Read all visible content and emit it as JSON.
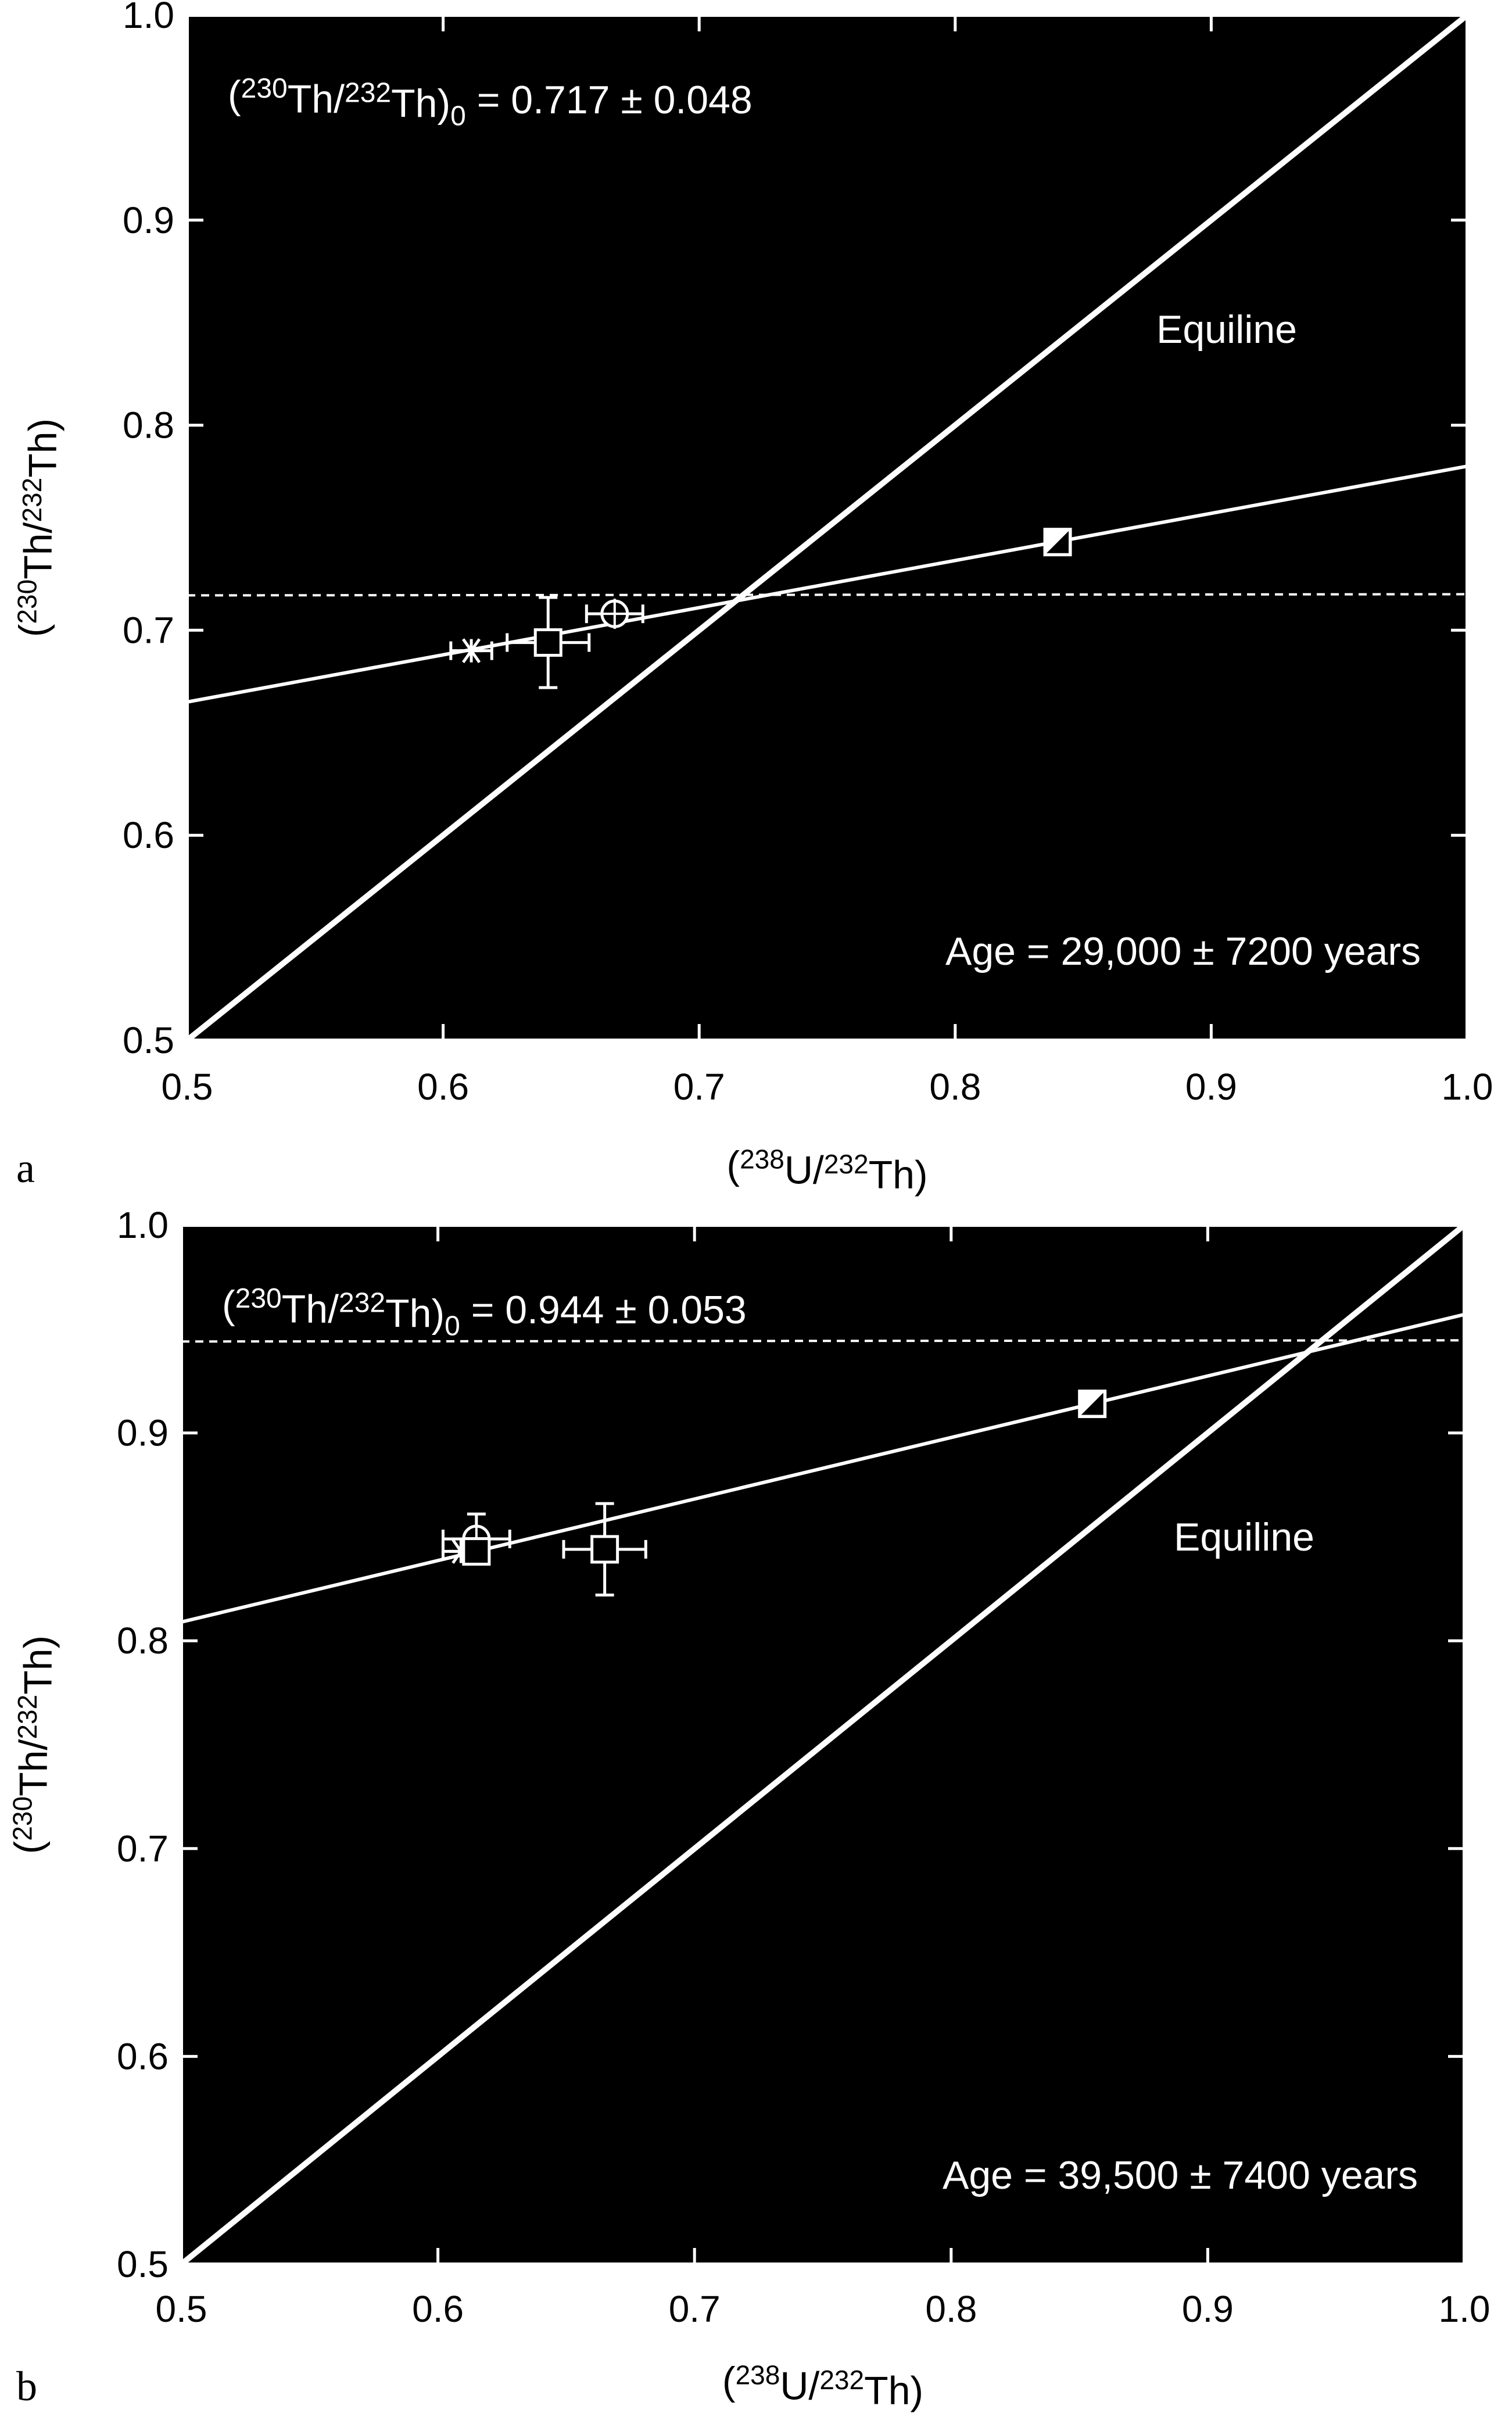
{
  "chart_data": [
    {
      "type": "scatter",
      "panel_label": "a",
      "xlabel": "(238U/232Th)",
      "ylabel": "(230Th/232Th)",
      "xlim": [
        0.5,
        1.0
      ],
      "ylim": [
        0.5,
        1.0
      ],
      "xticks": [
        "0.5",
        "0.6",
        "0.7",
        "0.8",
        "0.9",
        "1.0"
      ],
      "yticks": [
        "0.5",
        "0.6",
        "0.7",
        "0.8",
        "0.9",
        "1.0"
      ],
      "background": "#000000",
      "foreground": "#ffffff",
      "initial_ratio_text": "(230Th/232Th)0 = 0.717 ± 0.048",
      "age_text": "Age = 29,000 ± 7200 years",
      "equiline_label": "Equiline",
      "equiline": [
        [
          0.5,
          0.5
        ],
        [
          1.0,
          1.0
        ]
      ],
      "isochron": [
        [
          0.5,
          0.665
        ],
        [
          1.0,
          0.78
        ]
      ],
      "initial_ratio_line": {
        "y": 0.717,
        "style": "dashed"
      },
      "points": [
        {
          "marker": "asterisk",
          "x": 0.611,
          "y": 0.69,
          "xerr": 0.008,
          "yerr": 0.0
        },
        {
          "marker": "square-open",
          "x": 0.641,
          "y": 0.694,
          "xerr": 0.016,
          "yerr": 0.022
        },
        {
          "marker": "circle-crosshair",
          "x": 0.667,
          "y": 0.708,
          "xerr": 0.011,
          "yerr": 0.0
        },
        {
          "marker": "square-half-filled",
          "x": 0.84,
          "y": 0.743,
          "xerr": 0.0,
          "yerr": 0.0
        }
      ]
    },
    {
      "type": "scatter",
      "panel_label": "b",
      "xlabel": "(238U/232Th)",
      "ylabel": "(230Th/232Th)",
      "xlim": [
        0.5,
        1.0
      ],
      "ylim": [
        0.5,
        1.0
      ],
      "xticks": [
        "0.5",
        "0.6",
        "0.7",
        "0.8",
        "0.9",
        "1.0"
      ],
      "yticks": [
        "0.5",
        "0.6",
        "0.7",
        "0.8",
        "0.9",
        "1.0"
      ],
      "background": "#000000",
      "foreground": "#ffffff",
      "initial_ratio_text": "(230Th/232Th)0 = 0.944 ± 0.053",
      "age_text": "Age = 39,500 ± 7400 years",
      "equiline_label": "Equiline",
      "equiline": [
        [
          0.5,
          0.5
        ],
        [
          1.0,
          1.0
        ]
      ],
      "isochron": [
        [
          0.5,
          0.809
        ],
        [
          1.0,
          0.957
        ]
      ],
      "initial_ratio_line": {
        "y": 0.944,
        "style": "dashed"
      },
      "points": [
        {
          "marker": "asterisk",
          "x": 0.609,
          "y": 0.843,
          "xerr": 0.007,
          "yerr": 0.0
        },
        {
          "marker": "circle-crosshair",
          "x": 0.615,
          "y": 0.849,
          "xerr": 0.013,
          "yerr": 0.012
        },
        {
          "marker": "square-open",
          "x": 0.615,
          "y": 0.843,
          "xerr": 0.0,
          "yerr": 0.0
        },
        {
          "marker": "square-open",
          "x": 0.665,
          "y": 0.844,
          "xerr": 0.016,
          "yerr": 0.022
        },
        {
          "marker": "square-half-filled",
          "x": 0.855,
          "y": 0.914,
          "xerr": 0.0,
          "yerr": 0.0
        }
      ]
    }
  ]
}
